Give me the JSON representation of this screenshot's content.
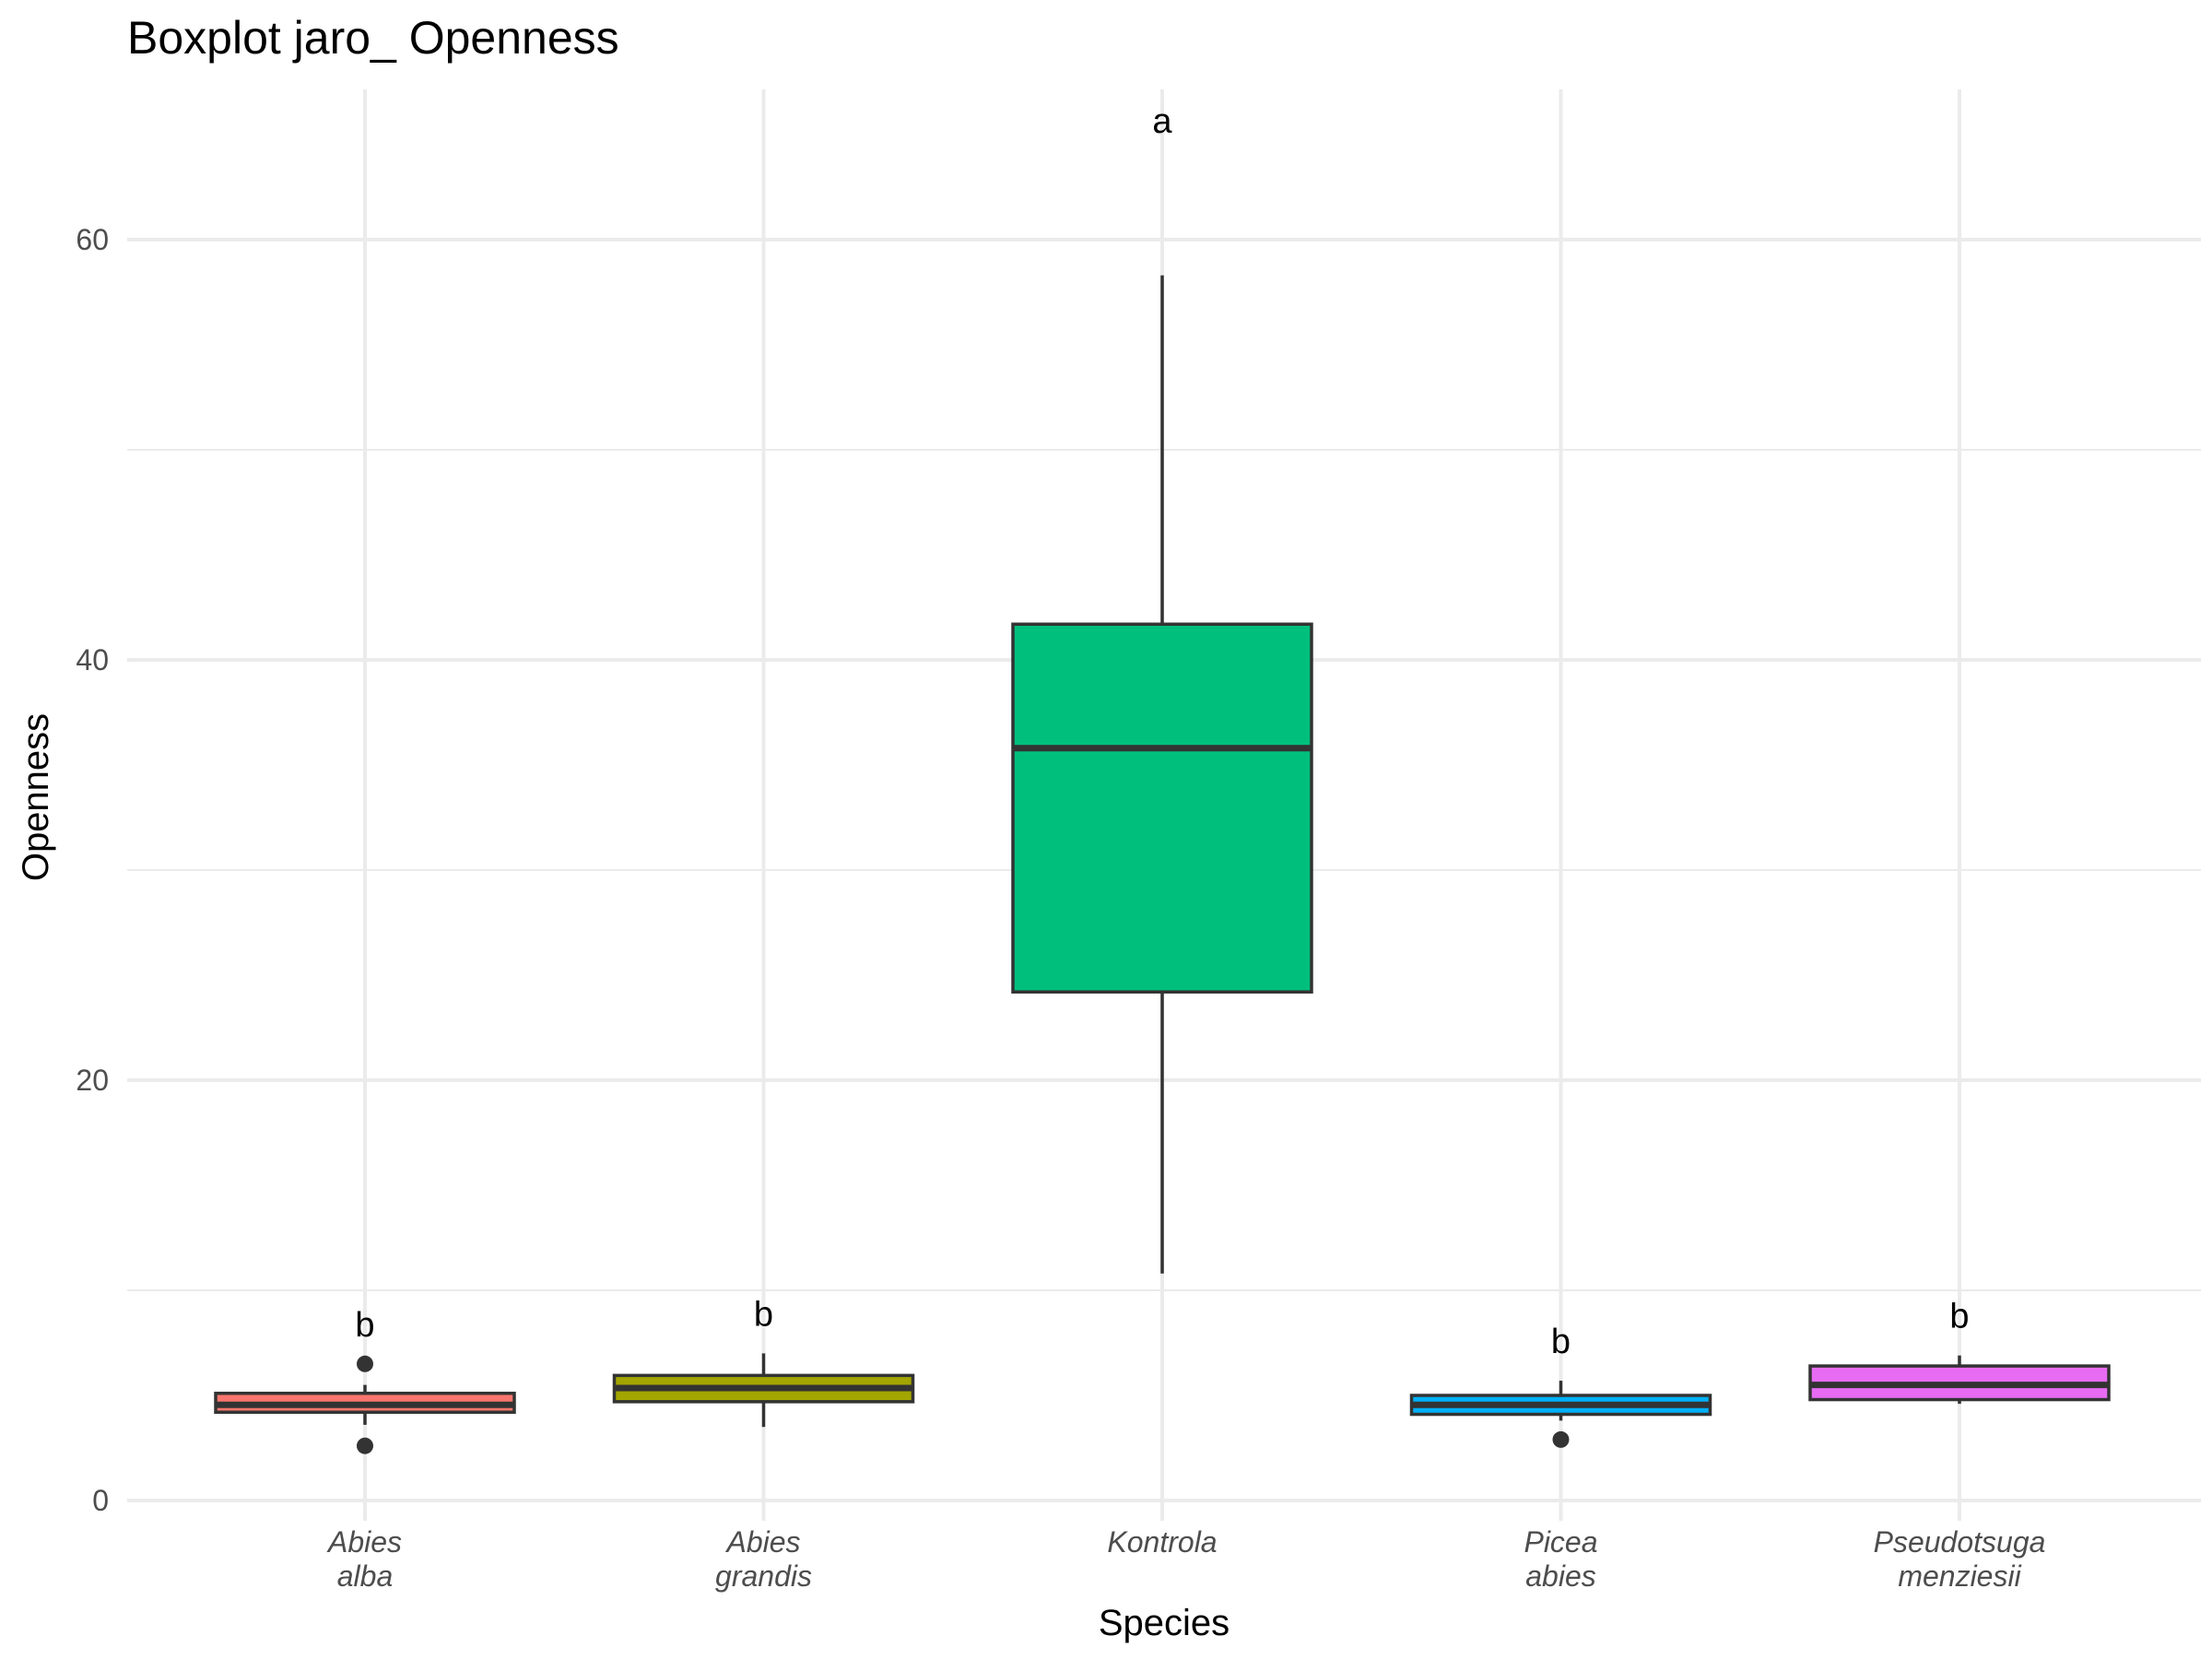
{
  "chart_data": {
    "type": "boxplot",
    "title": "Boxplot jaro_ Openness",
    "xlabel": "Species",
    "ylabel": "Openness",
    "ylim": [
      -0.5,
      65.5
    ],
    "yticks": [
      0,
      20,
      40,
      60
    ],
    "grid": true,
    "legend": "none",
    "categories": [
      {
        "line1": "Abies",
        "line2": "alba",
        "color": "#F8766D",
        "min": 3.6,
        "q1": 4.2,
        "median": 4.55,
        "q3": 5.1,
        "max": 5.5,
        "outliers": [
          2.6,
          6.5
        ],
        "letter": "b"
      },
      {
        "line1": "Abies",
        "line2": "grandis",
        "color": "#A3A500",
        "min": 3.5,
        "q1": 4.7,
        "median": 5.35,
        "q3": 5.95,
        "max": 7.0,
        "outliers": [],
        "letter": "b"
      },
      {
        "line1": "Kontrola",
        "line2": "",
        "color": "#00BF7D",
        "min": 10.8,
        "q1": 24.2,
        "median": 35.8,
        "q3": 41.7,
        "max": 58.3,
        "outliers": [],
        "letter": "a"
      },
      {
        "line1": "Picea",
        "line2": "abies",
        "color": "#00B0F6",
        "min": 3.8,
        "q1": 4.1,
        "median": 4.55,
        "q3": 5.0,
        "max": 5.7,
        "outliers": [
          2.9
        ],
        "letter": "b"
      },
      {
        "line1": "Pseudotsuga",
        "line2": "menziesii",
        "color": "#E76BF3",
        "min": 4.6,
        "q1": 4.8,
        "median": 5.5,
        "q3": 6.4,
        "max": 6.9,
        "outliers": [],
        "letter": "b"
      }
    ]
  }
}
